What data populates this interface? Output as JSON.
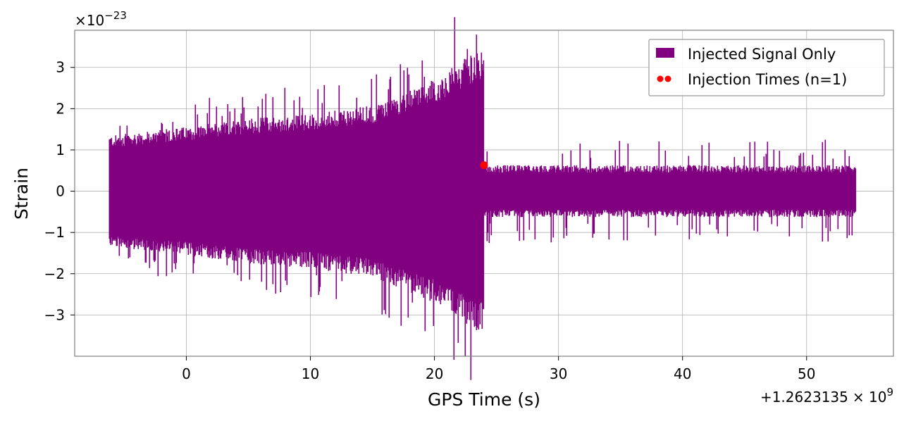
{
  "chart_data": {
    "type": "line",
    "xlabel": "GPS Time (s)",
    "ylabel": "Strain",
    "x_offset_text": "+1.2623135",
    "x_offset_mult": "× 10",
    "x_offset_exp": "9",
    "y_scale_prefix": "×10",
    "y_scale_exp": "−23",
    "xlim": [
      -9,
      57
    ],
    "ylim": [
      -4.0,
      3.9
    ],
    "x_ticks": [
      0,
      10,
      20,
      30,
      40,
      50
    ],
    "x_tick_labels": [
      "0",
      "10",
      "20",
      "30",
      "40",
      "50"
    ],
    "y_ticks": [
      -3,
      -2,
      -1,
      0,
      1,
      2,
      3
    ],
    "y_tick_labels": [
      "−3",
      "−2",
      "−1",
      "0",
      "1",
      "2",
      "3"
    ],
    "grid": true,
    "legend_position": "top-right",
    "series": [
      {
        "name": "Injected Signal Only",
        "kind": "strain",
        "color": "#800080",
        "t_start": -6.2,
        "t_merge": 24.0,
        "t_end": 54.0,
        "envelope_t": [
          -6,
          0,
          5,
          10,
          15,
          20,
          22,
          23,
          24
        ],
        "envelope_amp": [
          1.3,
          1.5,
          1.7,
          1.8,
          2.0,
          2.6,
          3.0,
          3.2,
          3.3
        ],
        "post_amp": 0.6
      },
      {
        "name": "Injection Times (n=1)",
        "kind": "marker",
        "color": "#ff0000",
        "x": [
          24.0
        ],
        "y": [
          0.63
        ]
      }
    ]
  }
}
